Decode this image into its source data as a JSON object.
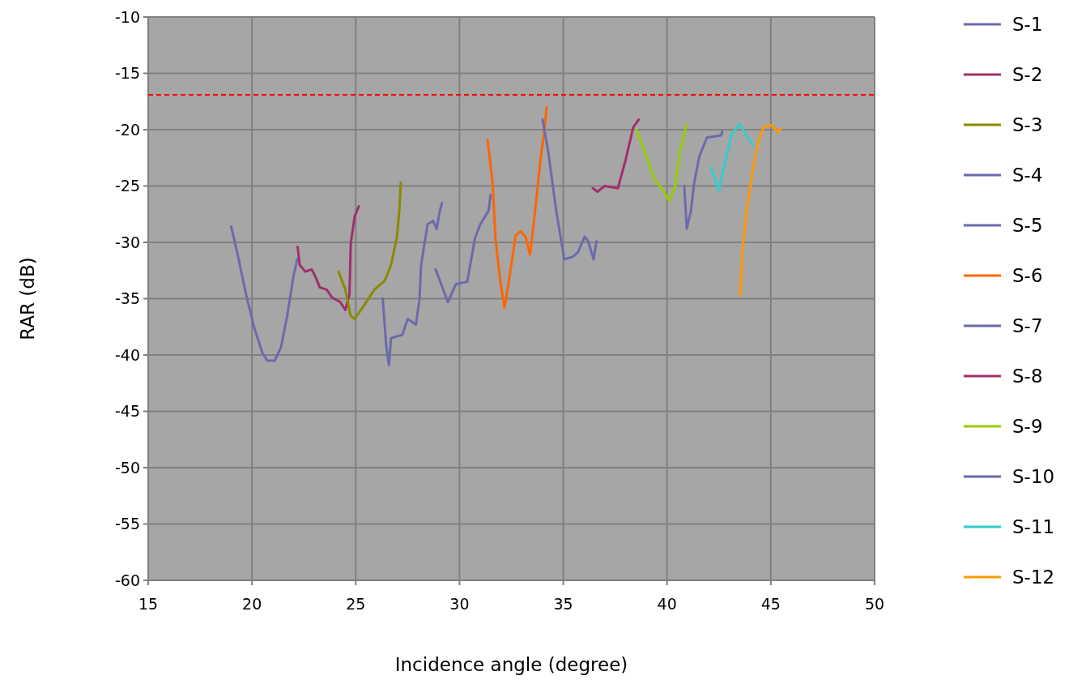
{
  "chart_data": {
    "type": "line",
    "xlabel": "Incidence angle (degree)",
    "ylabel": "RAR (dB)",
    "xlim": [
      15,
      50
    ],
    "xticks": [
      15,
      20,
      25,
      30,
      35,
      40,
      45,
      50
    ],
    "ylim": [
      -60,
      -10
    ],
    "yticks": [
      -60,
      -55,
      -50,
      -45,
      -40,
      -35,
      -30,
      -25,
      -20,
      -15,
      -10
    ],
    "grid": true,
    "legend": "right",
    "line_style": "solid",
    "marker": "none",
    "ref_lines": [
      {
        "axis": "y",
        "value": -16.9,
        "color": "#ff0000",
        "line_style": "dashed"
      }
    ],
    "series": [
      {
        "name": "S-1",
        "color": "#6b6bab",
        "x": [
          19.0,
          19.3,
          19.7,
          20.1,
          20.5,
          20.74,
          21.1,
          21.4,
          21.7,
          22.0,
          22.18
        ],
        "values": [
          -28.6,
          -31,
          -34.5,
          -37.5,
          -39.8,
          -40.5,
          -40.5,
          -39.3,
          -36.5,
          -33,
          -31.5
        ]
      },
      {
        "name": "S-2",
        "color": "#a0306a",
        "x": [
          22.2,
          22.3,
          22.57,
          22.88,
          23.07,
          23.27,
          23.6,
          23.86,
          24.25,
          24.5,
          24.7,
          24.76,
          24.95,
          25.15
        ],
        "values": [
          -30.4,
          -32,
          -32.6,
          -32.4,
          -33.1,
          -34,
          -34.2,
          -34.9,
          -35.3,
          -36,
          -34.6,
          -30.1,
          -27.7,
          -26.8
        ]
      },
      {
        "name": "S-3",
        "color": "#8a8a00",
        "x": [
          24.17,
          24.5,
          24.75,
          24.95,
          25.4,
          25.9,
          26.4,
          26.7,
          26.98,
          27.1,
          27.17
        ],
        "values": [
          -32.6,
          -34.2,
          -36.5,
          -36.8,
          -35.6,
          -34.2,
          -33.4,
          -32,
          -29.6,
          -27.2,
          -24.7
        ]
      },
      {
        "name": "S-4",
        "color": "#6b6bab",
        "x": [
          26.3,
          26.47,
          26.6,
          26.7,
          27.25,
          27.5,
          27.9,
          28.07,
          28.15,
          28.46,
          28.73,
          28.9,
          29.05,
          29.16
        ],
        "values": [
          -35,
          -39.2,
          -40.9,
          -38.5,
          -38.2,
          -36.8,
          -37.3,
          -35.1,
          -32,
          -28.4,
          -28.1,
          -28.8,
          -27.2,
          -26.5
        ]
      },
      {
        "name": "S-5",
        "color": "#6b6bab",
        "x": [
          28.85,
          29.44,
          29.83,
          30.37,
          30.75,
          31.0,
          31.4,
          31.5
        ],
        "values": [
          -32.4,
          -35.3,
          -33.7,
          -33.5,
          -29.6,
          -28.4,
          -27.2,
          -25.8
        ]
      },
      {
        "name": "S-6",
        "color": "#ff6600",
        "x": [
          31.35,
          31.6,
          31.73,
          31.97,
          32.17,
          32.44,
          32.7,
          32.95,
          33.2,
          33.4,
          33.6,
          33.9,
          34.08,
          34.2
        ],
        "values": [
          -20.9,
          -24.8,
          -29.6,
          -33.5,
          -35.8,
          -32.7,
          -29.4,
          -29,
          -29.6,
          -31.1,
          -27.9,
          -22.7,
          -20.2,
          -18
        ]
      },
      {
        "name": "S-7",
        "color": "#6b6bab",
        "x": [
          34.0,
          34.27,
          34.66,
          35.05,
          35.44,
          35.7,
          36.03,
          36.2,
          36.46,
          36.6
        ],
        "values": [
          -19.1,
          -21.9,
          -27.2,
          -31.5,
          -31.3,
          -30.9,
          -29.5,
          -29.9,
          -31.5,
          -29.9
        ]
      },
      {
        "name": "S-8",
        "color": "#a0306a",
        "x": [
          36.42,
          36.65,
          37.0,
          37.63,
          38.0,
          38.37,
          38.64
        ],
        "values": [
          -25.2,
          -25.5,
          -25,
          -25.2,
          -22.7,
          -19.8,
          -19.1
        ]
      },
      {
        "name": "S-9",
        "color": "#99cc00",
        "x": [
          38.53,
          39.07,
          39.35,
          39.78,
          40.09,
          40.36,
          40.63,
          40.95
        ],
        "values": [
          -20,
          -22.7,
          -24.3,
          -25.3,
          -26.3,
          -25.3,
          -21.9,
          -19.5
        ]
      },
      {
        "name": "S-10",
        "color": "#6b6bab",
        "x": [
          40.83,
          40.95,
          41.15,
          41.3,
          41.55,
          41.92,
          42.6,
          42.66
        ],
        "values": [
          -25,
          -28.8,
          -27.2,
          -24.8,
          -22.4,
          -20.7,
          -20.5,
          -20.2
        ]
      },
      {
        "name": "S-11",
        "color": "#33cccc",
        "x": [
          42.12,
          42.5,
          42.7,
          43.1,
          43.48,
          43.83,
          44.15
        ],
        "values": [
          -23.4,
          -25.4,
          -23.6,
          -20.5,
          -19.5,
          -20.5,
          -21.4
        ]
      },
      {
        "name": "S-12",
        "color": "#ff9900",
        "x": [
          43.52,
          43.64,
          43.83,
          44.15,
          44.42,
          44.65,
          45.04,
          45.3,
          45.5
        ],
        "values": [
          -34.7,
          -30.6,
          -27.2,
          -23.4,
          -20.9,
          -19.8,
          -19.6,
          -20.2,
          -19.9
        ]
      }
    ]
  }
}
